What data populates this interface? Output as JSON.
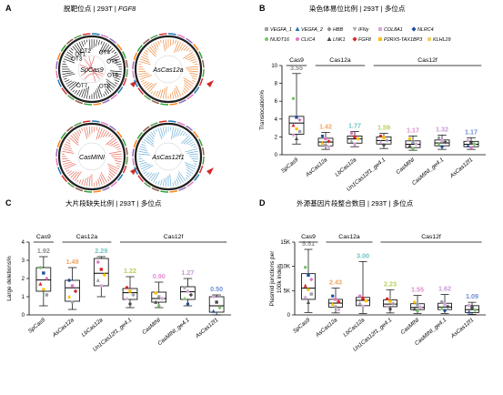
{
  "panels": {
    "a": {
      "label": "A",
      "title_pre": "脱靶位点 | 293T | ",
      "title_gene": "FGF8",
      "circles": [
        {
          "label": "SpCas9",
          "color": "#222222"
        },
        {
          "label": "AsCas12a",
          "color": "#f08a3c"
        },
        {
          "label": "CasMINI",
          "color": "#e66a5a"
        },
        {
          "label": "AsCas12f1",
          "color": "#6fb0d8"
        }
      ],
      "chromosome_labels": [
        "OT1",
        "OT2",
        "OT3",
        "OT4",
        "OT5",
        "OT6",
        "OT7",
        "OT8"
      ]
    },
    "b": {
      "label": "B",
      "title": "染色体易位比例 | 293T | 多位点"
    },
    "c": {
      "label": "C",
      "title": "大片段缺失比例 | 293T | 多位点"
    },
    "d": {
      "label": "D",
      "title": "外源基因片段整合数目 | 293T | 多位点"
    }
  },
  "legend": [
    {
      "name": "VEGFA_1",
      "color": "#9aa0a6",
      "shape": "square"
    },
    {
      "name": "VEGFA_2",
      "color": "#1f77b4",
      "shape": "triangle"
    },
    {
      "name": "HBB",
      "color": "#8c8c8c",
      "shape": "diamond"
    },
    {
      "name": "IFNγ",
      "color": "#aaaaaa",
      "shape": "triangle-down"
    },
    {
      "name": "COL8A1",
      "color": "#d6a6d8",
      "shape": "square"
    },
    {
      "name": "NLRC4",
      "color": "#1f4e9c",
      "shape": "diamond"
    },
    {
      "name": "NUDT16",
      "color": "#7cc16b",
      "shape": "circle"
    },
    {
      "name": "CLIC4",
      "color": "#e377c2",
      "shape": "circle"
    },
    {
      "name": "LNK1",
      "color": "#4a4a4a",
      "shape": "triangle"
    },
    {
      "name": "FGF8",
      "color": "#d62728",
      "shape": "diamond"
    },
    {
      "name": "P2RX5-TAX1BP3",
      "color": "#ffbf00",
      "shape": "square"
    },
    {
      "name": "KLHL29",
      "color": "#e8d36a",
      "shape": "square"
    }
  ],
  "groups": [
    {
      "label": "Cas9",
      "from": 0,
      "to": 0
    },
    {
      "label": "Cas12a",
      "from": 1,
      "to": 2
    },
    {
      "label": "Cas12f",
      "from": 3,
      "to": 6
    }
  ],
  "chart_data": [
    {
      "type": "box",
      "panel": "B",
      "ylabel": "Translocation%",
      "ylim": [
        0,
        10
      ],
      "yticks": [
        0,
        2,
        4,
        6,
        8,
        10
      ],
      "categories": [
        "SpCas9",
        "AsCas12a",
        "LbCas12a",
        "Un1Cas12f1_ge4.1",
        "CasMINI",
        "CasMINI_ge4.1",
        "AsCas12f1"
      ],
      "medians": [
        3.55,
        1.42,
        1.77,
        1.59,
        1.17,
        1.32,
        1.17
      ],
      "median_labels": [
        "3.55",
        "1.42",
        "1.77",
        "1.59",
        "1.17",
        "1.32",
        "1.17"
      ],
      "label_colors": [
        "#8c8c8c",
        "#f2a35e",
        "#6fc3c0",
        "#b5cf5b",
        "#e38ccf",
        "#c79ad6",
        "#6f8fd6"
      ],
      "box_stats": [
        {
          "min": 1.2,
          "q1": 2.3,
          "median": 3.55,
          "q3": 4.3,
          "max": 9.1
        },
        {
          "min": 0.6,
          "q1": 1.0,
          "median": 1.42,
          "q3": 1.85,
          "max": 2.5
        },
        {
          "min": 0.9,
          "q1": 1.3,
          "median": 1.77,
          "q3": 2.1,
          "max": 2.6
        },
        {
          "min": 0.7,
          "q1": 1.2,
          "median": 1.59,
          "q3": 2.0,
          "max": 2.4
        },
        {
          "min": 0.5,
          "q1": 0.8,
          "median": 1.17,
          "q3": 1.55,
          "max": 2.1
        },
        {
          "min": 0.6,
          "q1": 1.0,
          "median": 1.32,
          "q3": 1.65,
          "max": 2.2
        },
        {
          "min": 0.6,
          "q1": 0.9,
          "median": 1.17,
          "q3": 1.5,
          "max": 1.9
        }
      ],
      "points": [
        [
          6.3,
          4.2,
          3.9,
          3.3,
          2.9,
          2.6,
          2.2,
          1.8
        ],
        [
          2.1,
          1.8,
          1.5,
          1.3,
          1.1,
          0.9
        ],
        [
          2.4,
          2.0,
          1.8,
          1.5,
          1.2
        ],
        [
          2.1,
          1.9,
          1.6,
          1.4,
          1.1
        ],
        [
          1.8,
          1.4,
          1.2,
          1.0,
          0.7
        ],
        [
          1.9,
          1.6,
          1.4,
          1.2,
          0.9
        ],
        [
          1.6,
          1.3,
          1.2,
          1.0,
          0.8
        ]
      ]
    },
    {
      "type": "box",
      "panel": "C",
      "ylabel": "Large deletions%",
      "ylim": [
        0,
        4
      ],
      "yticks": [
        0,
        1,
        2,
        3,
        4
      ],
      "categories": [
        "SpCas9",
        "AsCas12a",
        "LbCas12a",
        "Un1Cas12f1_ge4.1",
        "CasMINI",
        "CasMINI_ge4.1",
        "AsCas12f1"
      ],
      "medians": [
        1.92,
        1.49,
        2.29,
        1.22,
        0.9,
        1.27,
        0.5
      ],
      "median_labels": [
        "1.92",
        "1.49",
        "2.29",
        "1.22",
        "0.90",
        "1.27",
        "0.50"
      ],
      "label_colors": [
        "#8c8c8c",
        "#f2a35e",
        "#6fc3c0",
        "#b5cf5b",
        "#e38ccf",
        "#c79ad6",
        "#6f8fd6"
      ],
      "box_stats": [
        {
          "min": 0.5,
          "q1": 1.3,
          "median": 1.92,
          "q3": 2.6,
          "max": 3.2
        },
        {
          "min": 0.3,
          "q1": 0.75,
          "median": 1.49,
          "q3": 1.9,
          "max": 2.6
        },
        {
          "min": 1.0,
          "q1": 1.6,
          "median": 2.29,
          "q3": 3.1,
          "max": 3.2
        },
        {
          "min": 0.4,
          "q1": 0.85,
          "median": 1.22,
          "q3": 1.45,
          "max": 2.1
        },
        {
          "min": 0.4,
          "q1": 0.7,
          "median": 0.9,
          "q3": 1.25,
          "max": 1.8
        },
        {
          "min": 0.5,
          "q1": 0.85,
          "median": 1.27,
          "q3": 1.55,
          "max": 2.0
        },
        {
          "min": 0.0,
          "q1": 0.15,
          "median": 0.5,
          "q3": 1.0,
          "max": 1.1
        }
      ],
      "points": [
        [
          2.6,
          2.3,
          2.0,
          1.7,
          1.4,
          1.1
        ],
        [
          1.9,
          1.6,
          1.3,
          1.0,
          0.7
        ],
        [
          2.9,
          2.5,
          2.2,
          1.9,
          1.6
        ],
        [
          1.5,
          1.3,
          1.1,
          0.9,
          0.6
        ],
        [
          1.2,
          1.0,
          0.9,
          0.7,
          0.5
        ],
        [
          1.5,
          1.3,
          1.1,
          0.9,
          0.6
        ],
        [
          1.0,
          0.7,
          0.4,
          0.2
        ]
      ]
    },
    {
      "type": "box",
      "panel": "D",
      "ylabel": "Plasmid junctions per 100k indels",
      "ylim": [
        0,
        15000
      ],
      "yticks": [
        0,
        5000,
        10000,
        15000
      ],
      "ytick_labels": [
        "0",
        "5K",
        "10K",
        "15K"
      ],
      "categories": [
        "SpCas9",
        "AsCas12a",
        "LbCas12a",
        "Un1Cas12f1_ge4.1",
        "CasMINI",
        "CasMINI_ge4.1",
        "AsCas12f1"
      ],
      "medians": [
        5.51,
        2.43,
        3.0,
        2.23,
        1.55,
        1.62,
        1.09
      ],
      "median_labels": [
        "5.51",
        "2.43",
        "3.00",
        "2.23",
        "1.55",
        "1.62",
        "1.09"
      ],
      "label_colors": [
        "#8c8c8c",
        "#f2a35e",
        "#6fc3c0",
        "#b5cf5b",
        "#e38ccf",
        "#c79ad6",
        "#6f8fd6"
      ],
      "box_stats": [
        {
          "min": 500,
          "q1": 3200,
          "median": 5510,
          "q3": 8500,
          "max": 13500
        },
        {
          "min": 400,
          "q1": 1600,
          "median": 2430,
          "q3": 3200,
          "max": 5500
        },
        {
          "min": 300,
          "q1": 1900,
          "median": 3000,
          "q3": 3600,
          "max": 11000
        },
        {
          "min": 400,
          "q1": 1700,
          "median": 2230,
          "q3": 3100,
          "max": 5200
        },
        {
          "min": 300,
          "q1": 1100,
          "median": 1550,
          "q3": 2300,
          "max": 4000
        },
        {
          "min": 300,
          "q1": 1100,
          "median": 1620,
          "q3": 2400,
          "max": 4200
        },
        {
          "min": 100,
          "q1": 500,
          "median": 1090,
          "q3": 1900,
          "max": 2600
        }
      ],
      "points": [
        [
          9800,
          8200,
          7300,
          6000,
          5200,
          4300,
          3600,
          2600
        ],
        [
          3900,
          3200,
          2700,
          2200,
          1700,
          1100
        ],
        [
          3900,
          3400,
          2900,
          2400,
          1800
        ],
        [
          3300,
          2800,
          2300,
          1800,
          1200
        ],
        [
          2600,
          2100,
          1600,
          1200,
          800
        ],
        [
          2700,
          2200,
          1700,
          1300,
          900
        ],
        [
          2000,
          1500,
          1000,
          600
        ]
      ]
    }
  ]
}
